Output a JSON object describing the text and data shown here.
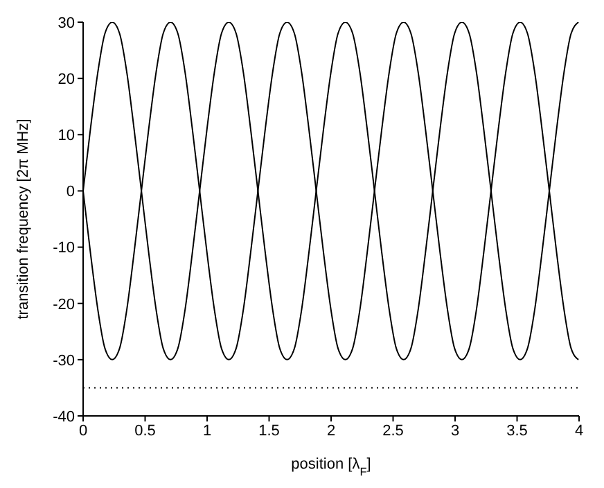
{
  "chart_data": {
    "type": "line",
    "xlabel": "position [λ$_{F}$]",
    "ylabel": "transition frequency [2π MHz]",
    "x": [
      0,
      0.059,
      0.118,
      0.176,
      0.235,
      0.294,
      0.353,
      0.411,
      0.47,
      0.529,
      0.588,
      0.646,
      0.705,
      0.764,
      0.823,
      0.881,
      0.94,
      0.999,
      1.058,
      1.116,
      1.175,
      1.234,
      1.293,
      1.351,
      1.41,
      1.469,
      1.528,
      1.586,
      1.645,
      1.704,
      1.763,
      1.821,
      1.88,
      1.939,
      1.998,
      2.056,
      2.115,
      2.174,
      2.233,
      2.291,
      2.35,
      2.409,
      2.468,
      2.526,
      2.585,
      2.644,
      2.703,
      2.761,
      2.82,
      2.879,
      2.938,
      2.996,
      3.055,
      3.114,
      3.173,
      3.231,
      3.29,
      3.349,
      3.408,
      3.466,
      3.525,
      3.584,
      3.643,
      3.701,
      3.76,
      3.819,
      3.878,
      3.936,
      3.995
    ],
    "series": [
      {
        "color": "#000000",
        "values": [
          0,
          11,
          21,
          28,
          30,
          28,
          21,
          11,
          0,
          -11,
          -21,
          -28,
          -30,
          -28,
          -21,
          -11,
          0,
          11,
          21,
          28,
          30,
          28,
          21,
          11,
          0,
          -11,
          -21,
          -28,
          -30,
          -28,
          -21,
          -11,
          0,
          11,
          21,
          28,
          30,
          28,
          21,
          11,
          0,
          -11,
          -21,
          -28,
          -30,
          -28,
          -21,
          -11,
          0,
          11,
          21,
          28,
          30,
          28,
          21,
          11,
          0,
          -11,
          -21,
          -28,
          -30,
          -28,
          -21,
          -11,
          0,
          11,
          21,
          28,
          30
        ]
      },
      {
        "color": "#000000",
        "values": [
          0,
          -11,
          -21,
          -28,
          -30,
          -28,
          -21,
          -11,
          0,
          11,
          21,
          28,
          30,
          28,
          21,
          11,
          0,
          -11,
          -21,
          -28,
          -30,
          -28,
          -21,
          -11,
          0,
          11,
          21,
          28,
          30,
          28,
          21,
          11,
          0,
          -11,
          -21,
          -28,
          -30,
          -28,
          -21,
          -11,
          0,
          11,
          21,
          28,
          30,
          28,
          21,
          11,
          0,
          -11,
          -21,
          -28,
          -30,
          -28,
          -21,
          -11,
          0,
          11,
          21,
          28,
          30,
          28,
          21,
          11,
          0,
          -11,
          -21,
          -28,
          -30
        ]
      }
    ],
    "xlim": [
      0,
      4
    ],
    "xticks": [
      0,
      0.5,
      1,
      1.5,
      2,
      2.5,
      3,
      3.5,
      4
    ],
    "ylim": [
      -40,
      30
    ],
    "yticks": [
      -40,
      -30,
      -20,
      -10,
      0,
      10,
      20,
      30
    ],
    "ref_lines": [
      {
        "axis": "y",
        "value": -35,
        "color": "#000000",
        "line_style": "dotted"
      }
    ],
    "grid": false,
    "legend": false,
    "marker": "none",
    "line_style": "solid"
  }
}
